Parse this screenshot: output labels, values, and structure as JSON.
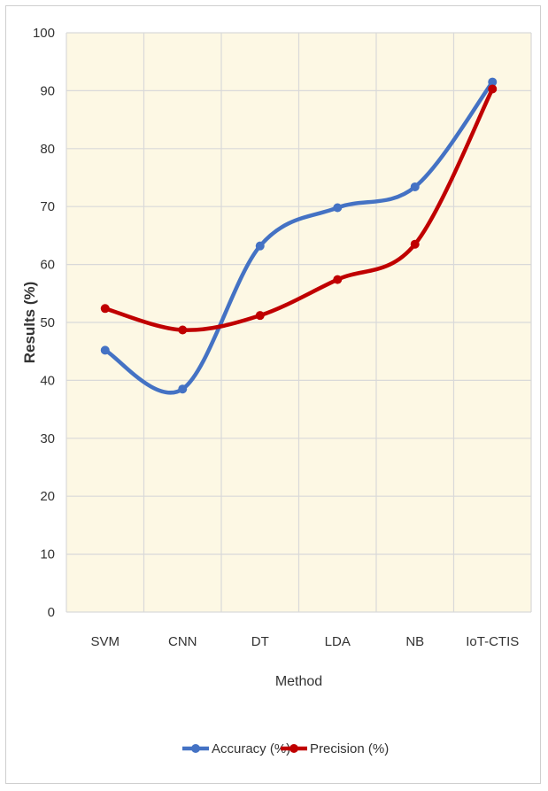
{
  "chart_data": {
    "type": "line",
    "xlabel": "Method",
    "ylabel": "Results (%)",
    "ylim": [
      0,
      100
    ],
    "yticks": [
      0,
      10,
      20,
      30,
      40,
      50,
      60,
      70,
      80,
      90,
      100
    ],
    "categories": [
      "SVM",
      "CNN",
      "DT",
      "LDA",
      "NB",
      "IoT-CTIS"
    ],
    "series": [
      {
        "name": "Accuracy (%)",
        "color": "#4472c4",
        "values": [
          45.2,
          38.5,
          63.2,
          69.8,
          73.4,
          91.5
        ]
      },
      {
        "name": "Precision (%)",
        "color": "#c00000",
        "values": [
          52.4,
          48.7,
          51.2,
          57.4,
          63.5,
          90.3
        ]
      }
    ],
    "grid": true,
    "plot_background": "#fdf8e4",
    "legend_position": "bottom"
  }
}
